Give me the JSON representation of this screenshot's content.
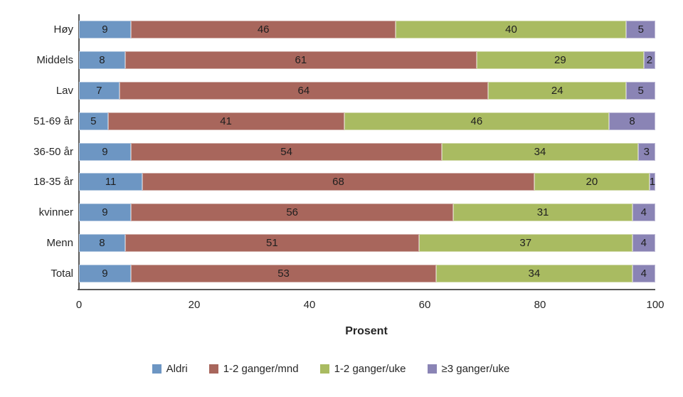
{
  "chart_data": {
    "type": "bar",
    "orientation": "horizontal",
    "stacked": true,
    "title": "",
    "xlabel": "Prosent",
    "ylabel": "",
    "xlim": [
      0,
      100
    ],
    "x_ticks": [
      0,
      20,
      40,
      60,
      80,
      100
    ],
    "grid": false,
    "legend_position": "bottom",
    "categories": [
      "Høy",
      "Middels",
      "Lav",
      "51-69 år",
      "36-50 år",
      "18-35 år",
      "kvinner",
      "Menn",
      "Total"
    ],
    "series": [
      {
        "name": "Aldri",
        "color": "#6D96C3",
        "values": [
          9,
          8,
          7,
          5,
          9,
          11,
          9,
          8,
          9
        ]
      },
      {
        "name": "1-2 ganger/mnd",
        "color": "#A8665C",
        "values": [
          46,
          61,
          64,
          41,
          54,
          68,
          56,
          51,
          53
        ]
      },
      {
        "name": "1-2 ganger/uke",
        "color": "#A9BB61",
        "values": [
          40,
          29,
          24,
          46,
          34,
          20,
          31,
          37,
          34
        ]
      },
      {
        "name": "≥3 ganger/uke",
        "color": "#8A84B5",
        "values": [
          5,
          2,
          5,
          8,
          3,
          1,
          4,
          4,
          4
        ]
      }
    ],
    "colors": {
      "axis": "#595959",
      "text": "#262626",
      "bar_value_text": "#1f1f1f"
    }
  }
}
